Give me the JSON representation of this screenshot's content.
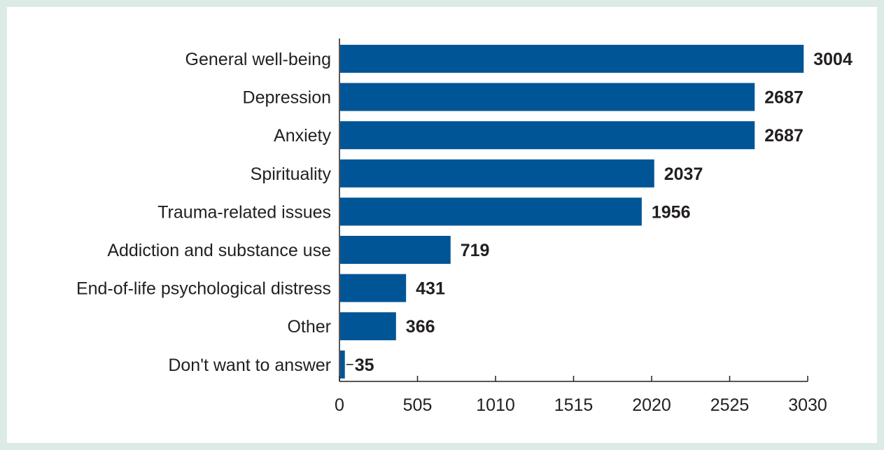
{
  "chart_data": {
    "type": "bar",
    "orientation": "horizontal",
    "categories": [
      "General well-being",
      "Depression",
      "Anxiety",
      "Spirituality",
      "Trauma-related issues",
      "Addiction and substance use",
      "End-of-life psychological distress",
      "Other",
      "Don't want to answer"
    ],
    "values": [
      3004,
      2687,
      2687,
      2037,
      1956,
      719,
      431,
      366,
      35
    ],
    "value_labels": [
      "3004",
      "2687",
      "2687",
      "2037",
      "1956",
      "719",
      "431",
      "366",
      "35"
    ],
    "xticks": [
      "0",
      "505",
      "1010",
      "1515",
      "2020",
      "2525",
      "3030"
    ],
    "xlim": [
      0,
      3030
    ],
    "title": "",
    "xlabel": "",
    "ylabel": "",
    "bar_color": "#005596",
    "background_color": "#dcebe6",
    "grid": false,
    "legend": "none"
  }
}
